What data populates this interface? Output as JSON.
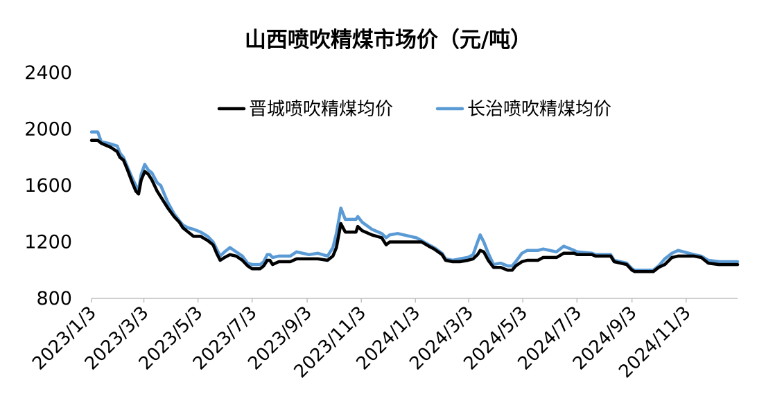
{
  "chart_data": {
    "type": "line",
    "title": "山西喷吹精煤市场价（元/吨）",
    "ylim": [
      800,
      2400
    ],
    "yticks": [
      800,
      1200,
      1600,
      2000,
      2400
    ],
    "xlim": [
      "2023-01-03",
      "2024-12-31"
    ],
    "xticks": [
      {
        "date": "2023-01-03",
        "label": "2023/1/3"
      },
      {
        "date": "2023-03-03",
        "label": "2023/3/3"
      },
      {
        "date": "2023-05-03",
        "label": "2023/5/3"
      },
      {
        "date": "2023-07-03",
        "label": "2023/7/3"
      },
      {
        "date": "2023-09-03",
        "label": "2023/9/3"
      },
      {
        "date": "2023-11-03",
        "label": "2023/11/3"
      },
      {
        "date": "2024-01-03",
        "label": "2024/1/3"
      },
      {
        "date": "2024-03-03",
        "label": "2024/3/3"
      },
      {
        "date": "2024-05-03",
        "label": "2024/5/3"
      },
      {
        "date": "2024-07-03",
        "label": "2024/7/3"
      },
      {
        "date": "2024-09-03",
        "label": "2024/9/3"
      },
      {
        "date": "2024-11-03",
        "label": "2024/11/3"
      }
    ],
    "legend_position": "top-right",
    "grid": false,
    "series": [
      {
        "name": "晋城喷吹精煤均价",
        "color": "#000000",
        "points": [
          [
            "2023-01-03",
            1920
          ],
          [
            "2023-01-10",
            1920
          ],
          [
            "2023-01-14",
            1900
          ],
          [
            "2023-01-25",
            1870
          ],
          [
            "2023-02-01",
            1840
          ],
          [
            "2023-02-04",
            1800
          ],
          [
            "2023-02-08",
            1780
          ],
          [
            "2023-02-12",
            1720
          ],
          [
            "2023-02-18",
            1620
          ],
          [
            "2023-02-22",
            1560
          ],
          [
            "2023-02-25",
            1540
          ],
          [
            "2023-02-28",
            1640
          ],
          [
            "2023-03-04",
            1700
          ],
          [
            "2023-03-08",
            1680
          ],
          [
            "2023-03-12",
            1640
          ],
          [
            "2023-03-18",
            1560
          ],
          [
            "2023-03-22",
            1520
          ],
          [
            "2023-03-30",
            1440
          ],
          [
            "2023-04-06",
            1380
          ],
          [
            "2023-04-12",
            1340
          ],
          [
            "2023-04-16",
            1300
          ],
          [
            "2023-04-22",
            1270
          ],
          [
            "2023-04-28",
            1240
          ],
          [
            "2023-05-06",
            1240
          ],
          [
            "2023-05-14",
            1210
          ],
          [
            "2023-05-20",
            1180
          ],
          [
            "2023-05-24",
            1120
          ],
          [
            "2023-05-28",
            1070
          ],
          [
            "2023-06-02",
            1090
          ],
          [
            "2023-06-08",
            1110
          ],
          [
            "2023-06-15",
            1100
          ],
          [
            "2023-06-22",
            1070
          ],
          [
            "2023-06-28",
            1030
          ],
          [
            "2023-07-03",
            1010
          ],
          [
            "2023-07-12",
            1010
          ],
          [
            "2023-07-16",
            1030
          ],
          [
            "2023-07-20",
            1070
          ],
          [
            "2023-07-23",
            1070
          ],
          [
            "2023-07-26",
            1040
          ],
          [
            "2023-08-02",
            1060
          ],
          [
            "2023-08-15",
            1060
          ],
          [
            "2023-08-22",
            1080
          ],
          [
            "2023-09-05",
            1080
          ],
          [
            "2023-09-15",
            1080
          ],
          [
            "2023-09-26",
            1070
          ],
          [
            "2023-10-02",
            1100
          ],
          [
            "2023-10-06",
            1160
          ],
          [
            "2023-10-11",
            1330
          ],
          [
            "2023-10-16",
            1270
          ],
          [
            "2023-10-28",
            1270
          ],
          [
            "2023-10-30",
            1310
          ],
          [
            "2023-11-04",
            1280
          ],
          [
            "2023-11-15",
            1250
          ],
          [
            "2023-11-26",
            1230
          ],
          [
            "2023-12-01",
            1180
          ],
          [
            "2023-12-05",
            1200
          ],
          [
            "2023-12-14",
            1200
          ],
          [
            "2024-01-04",
            1200
          ],
          [
            "2024-01-10",
            1200
          ],
          [
            "2024-01-18",
            1170
          ],
          [
            "2024-01-24",
            1150
          ],
          [
            "2024-02-02",
            1110
          ],
          [
            "2024-02-06",
            1070
          ],
          [
            "2024-02-14",
            1060
          ],
          [
            "2024-02-22",
            1060
          ],
          [
            "2024-03-02",
            1070
          ],
          [
            "2024-03-08",
            1080
          ],
          [
            "2024-03-13",
            1110
          ],
          [
            "2024-03-16",
            1140
          ],
          [
            "2024-03-20",
            1130
          ],
          [
            "2024-03-25",
            1070
          ],
          [
            "2024-03-31",
            1020
          ],
          [
            "2024-04-08",
            1020
          ],
          [
            "2024-04-16",
            1000
          ],
          [
            "2024-04-21",
            1000
          ],
          [
            "2024-04-25",
            1030
          ],
          [
            "2024-05-02",
            1060
          ],
          [
            "2024-05-08",
            1070
          ],
          [
            "2024-05-20",
            1070
          ],
          [
            "2024-05-26",
            1090
          ],
          [
            "2024-06-10",
            1090
          ],
          [
            "2024-06-18",
            1120
          ],
          [
            "2024-06-30",
            1120
          ],
          [
            "2024-07-03",
            1110
          ],
          [
            "2024-07-20",
            1110
          ],
          [
            "2024-07-24",
            1100
          ],
          [
            "2024-08-10",
            1100
          ],
          [
            "2024-08-14",
            1060
          ],
          [
            "2024-08-28",
            1040
          ],
          [
            "2024-09-03",
            1000
          ],
          [
            "2024-09-06",
            990
          ],
          [
            "2024-09-27",
            990
          ],
          [
            "2024-10-03",
            1020
          ],
          [
            "2024-10-10",
            1040
          ],
          [
            "2024-10-18",
            1090
          ],
          [
            "2024-10-25",
            1100
          ],
          [
            "2024-11-12",
            1100
          ],
          [
            "2024-11-20",
            1090
          ],
          [
            "2024-11-28",
            1050
          ],
          [
            "2024-12-10",
            1040
          ],
          [
            "2024-12-31",
            1040
          ]
        ]
      },
      {
        "name": "长治喷吹精煤均价",
        "color": "#5b9bd5",
        "points": [
          [
            "2023-01-03",
            1980
          ],
          [
            "2023-01-10",
            1980
          ],
          [
            "2023-01-14",
            1910
          ],
          [
            "2023-01-22",
            1900
          ],
          [
            "2023-02-01",
            1880
          ],
          [
            "2023-02-04",
            1830
          ],
          [
            "2023-02-08",
            1800
          ],
          [
            "2023-02-12",
            1740
          ],
          [
            "2023-02-18",
            1650
          ],
          [
            "2023-02-22",
            1600
          ],
          [
            "2023-02-25",
            1570
          ],
          [
            "2023-02-28",
            1680
          ],
          [
            "2023-03-04",
            1750
          ],
          [
            "2023-03-08",
            1710
          ],
          [
            "2023-03-12",
            1690
          ],
          [
            "2023-03-18",
            1620
          ],
          [
            "2023-03-22",
            1600
          ],
          [
            "2023-03-30",
            1480
          ],
          [
            "2023-04-06",
            1400
          ],
          [
            "2023-04-12",
            1350
          ],
          [
            "2023-04-16",
            1320
          ],
          [
            "2023-04-22",
            1300
          ],
          [
            "2023-04-28",
            1290
          ],
          [
            "2023-05-06",
            1270
          ],
          [
            "2023-05-14",
            1240
          ],
          [
            "2023-05-20",
            1200
          ],
          [
            "2023-05-24",
            1150
          ],
          [
            "2023-05-28",
            1100
          ],
          [
            "2023-06-02",
            1130
          ],
          [
            "2023-06-08",
            1160
          ],
          [
            "2023-06-15",
            1130
          ],
          [
            "2023-06-22",
            1100
          ],
          [
            "2023-06-28",
            1050
          ],
          [
            "2023-07-03",
            1040
          ],
          [
            "2023-07-12",
            1040
          ],
          [
            "2023-07-16",
            1060
          ],
          [
            "2023-07-20",
            1110
          ],
          [
            "2023-07-23",
            1110
          ],
          [
            "2023-07-26",
            1090
          ],
          [
            "2023-08-02",
            1100
          ],
          [
            "2023-08-15",
            1100
          ],
          [
            "2023-08-22",
            1130
          ],
          [
            "2023-09-05",
            1110
          ],
          [
            "2023-09-15",
            1120
          ],
          [
            "2023-09-26",
            1100
          ],
          [
            "2023-10-02",
            1160
          ],
          [
            "2023-10-06",
            1260
          ],
          [
            "2023-10-11",
            1440
          ],
          [
            "2023-10-16",
            1360
          ],
          [
            "2023-10-28",
            1360
          ],
          [
            "2023-10-30",
            1380
          ],
          [
            "2023-11-04",
            1340
          ],
          [
            "2023-11-15",
            1290
          ],
          [
            "2023-11-26",
            1260
          ],
          [
            "2023-12-01",
            1230
          ],
          [
            "2023-12-05",
            1250
          ],
          [
            "2023-12-14",
            1260
          ],
          [
            "2024-01-04",
            1230
          ],
          [
            "2024-01-10",
            1210
          ],
          [
            "2024-01-18",
            1180
          ],
          [
            "2024-01-24",
            1160
          ],
          [
            "2024-02-02",
            1120
          ],
          [
            "2024-02-06",
            1080
          ],
          [
            "2024-02-14",
            1070
          ],
          [
            "2024-02-22",
            1080
          ],
          [
            "2024-03-02",
            1090
          ],
          [
            "2024-03-08",
            1110
          ],
          [
            "2024-03-13",
            1200
          ],
          [
            "2024-03-16",
            1250
          ],
          [
            "2024-03-20",
            1200
          ],
          [
            "2024-03-25",
            1120
          ],
          [
            "2024-03-31",
            1040
          ],
          [
            "2024-04-08",
            1050
          ],
          [
            "2024-04-16",
            1030
          ],
          [
            "2024-04-21",
            1030
          ],
          [
            "2024-04-25",
            1060
          ],
          [
            "2024-05-02",
            1120
          ],
          [
            "2024-05-08",
            1140
          ],
          [
            "2024-05-20",
            1140
          ],
          [
            "2024-05-26",
            1150
          ],
          [
            "2024-06-10",
            1130
          ],
          [
            "2024-06-18",
            1170
          ],
          [
            "2024-06-30",
            1140
          ],
          [
            "2024-07-03",
            1130
          ],
          [
            "2024-07-20",
            1120
          ],
          [
            "2024-07-24",
            1110
          ],
          [
            "2024-08-10",
            1110
          ],
          [
            "2024-08-14",
            1070
          ],
          [
            "2024-08-28",
            1050
          ],
          [
            "2024-09-03",
            1010
          ],
          [
            "2024-09-06",
            1000
          ],
          [
            "2024-09-27",
            1000
          ],
          [
            "2024-10-03",
            1030
          ],
          [
            "2024-10-10",
            1080
          ],
          [
            "2024-10-18",
            1120
          ],
          [
            "2024-10-25",
            1140
          ],
          [
            "2024-11-12",
            1110
          ],
          [
            "2024-11-20",
            1100
          ],
          [
            "2024-11-28",
            1070
          ],
          [
            "2024-12-10",
            1060
          ],
          [
            "2024-12-31",
            1060
          ]
        ]
      }
    ]
  }
}
